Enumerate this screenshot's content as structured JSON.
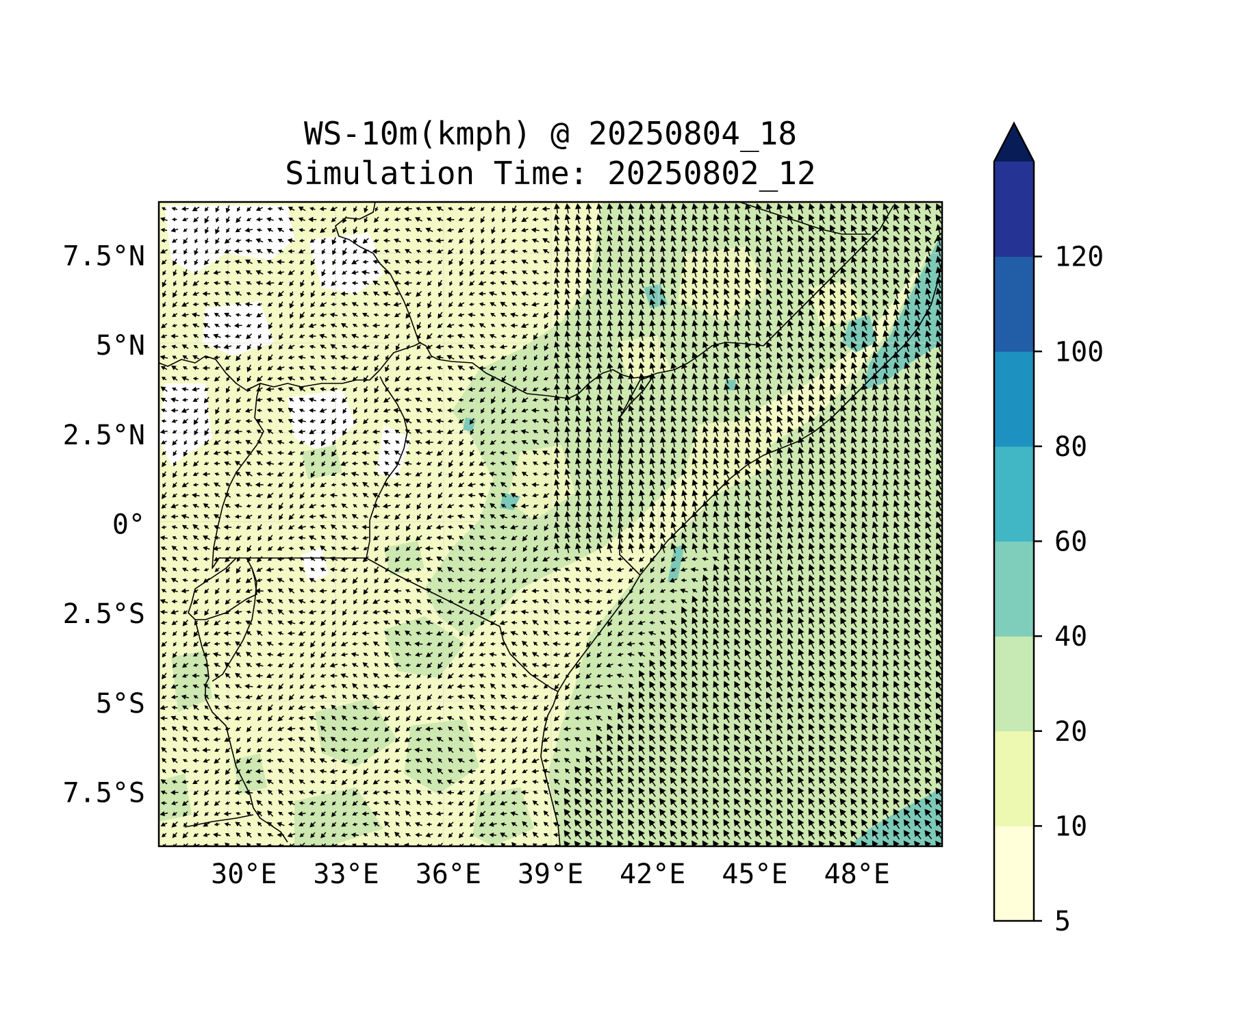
{
  "title": {
    "line1": "WS-10m(kmph) @ 20250804_18",
    "line2": "Simulation Time: 20250802_12"
  },
  "map": {
    "lon_range": [
      27.5,
      50.5
    ],
    "lat_range": [
      -9.0,
      9.0
    ],
    "lon_ticks": [
      {
        "value": 30,
        "label": "30°E"
      },
      {
        "value": 33,
        "label": "33°E"
      },
      {
        "value": 36,
        "label": "36°E"
      },
      {
        "value": 39,
        "label": "39°E"
      },
      {
        "value": 42,
        "label": "42°E"
      },
      {
        "value": 45,
        "label": "45°E"
      },
      {
        "value": 48,
        "label": "48°E"
      }
    ],
    "lat_ticks": [
      {
        "value": 7.5,
        "label": "7.5°N"
      },
      {
        "value": 5,
        "label": "5°N"
      },
      {
        "value": 2.5,
        "label": "2.5°N"
      },
      {
        "value": 0,
        "label": "0°"
      },
      {
        "value": -2.5,
        "label": "2.5°S"
      },
      {
        "value": -5,
        "label": "5°S"
      },
      {
        "value": -7.5,
        "label": "7.5°S"
      }
    ],
    "gridlines": true
  },
  "colorbar": {
    "levels": [
      {
        "value": 5,
        "label": "5"
      },
      {
        "value": 10,
        "label": "10"
      },
      {
        "value": 20,
        "label": "20"
      },
      {
        "value": 40,
        "label": "40"
      },
      {
        "value": 60,
        "label": "60"
      },
      {
        "value": 80,
        "label": "80"
      },
      {
        "value": 100,
        "label": "100"
      },
      {
        "value": 120,
        "label": "120"
      }
    ],
    "colors": [
      "#ffffd9",
      "#edf8b1",
      "#c7e9b4",
      "#7fcdbb",
      "#41b6c4",
      "#1d91c0",
      "#225ea8",
      "#253494"
    ],
    "extend_color": "#081d58",
    "extend": "max"
  },
  "colors": {
    "calm_land": "#f3fac5",
    "very_calm": "#ffffff",
    "ocean_wind": "#cde8b0",
    "strong_wind": "#7dc9b8",
    "border": "#000000",
    "arrow": "#000000"
  }
}
